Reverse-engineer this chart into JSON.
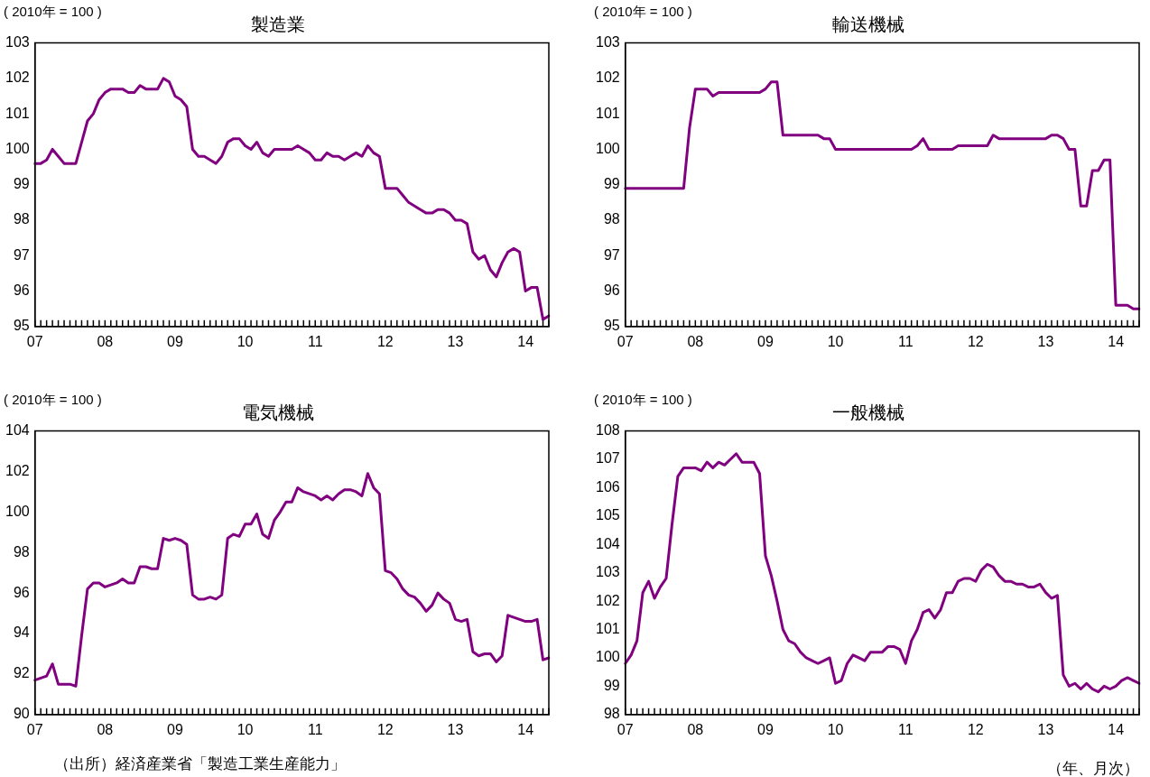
{
  "chart_data": [
    {
      "type": "line",
      "title": "製造業",
      "ylabel": "( 2010年 = 100 )",
      "categories": [
        "07",
        null,
        null,
        null,
        null,
        null,
        null,
        null,
        null,
        null,
        null,
        null,
        "08",
        null,
        null,
        null,
        null,
        null,
        null,
        null,
        null,
        null,
        null,
        null,
        "09",
        null,
        null,
        null,
        null,
        null,
        null,
        null,
        null,
        null,
        null,
        null,
        "10",
        null,
        null,
        null,
        null,
        null,
        null,
        null,
        null,
        null,
        null,
        null,
        "11",
        null,
        null,
        null,
        null,
        null,
        null,
        null,
        null,
        null,
        null,
        null,
        "12",
        null,
        null,
        null,
        null,
        null,
        null,
        null,
        null,
        null,
        null,
        null,
        "13",
        null,
        null,
        null,
        null,
        null,
        null,
        null,
        null,
        null,
        null,
        null,
        "14",
        null,
        null,
        null,
        null
      ],
      "series": [
        {
          "color": "#800080",
          "values": [
            99.6,
            99.6,
            99.7,
            100.0,
            99.8,
            99.6,
            99.6,
            99.6,
            100.2,
            100.8,
            101.0,
            101.4,
            101.6,
            101.7,
            101.7,
            101.7,
            101.6,
            101.6,
            101.8,
            101.7,
            101.7,
            101.7,
            102.0,
            101.9,
            101.5,
            101.4,
            101.2,
            100.0,
            99.8,
            99.8,
            99.7,
            99.6,
            99.8,
            100.2,
            100.3,
            100.3,
            100.1,
            100.0,
            100.2,
            99.9,
            99.8,
            100.0,
            100.0,
            100.0,
            100.0,
            100.1,
            100.0,
            99.9,
            99.7,
            99.7,
            99.9,
            99.8,
            99.8,
            99.7,
            99.8,
            99.9,
            99.8,
            100.1,
            99.9,
            99.8,
            98.9,
            98.9,
            98.9,
            98.7,
            98.5,
            98.4,
            98.3,
            98.2,
            98.2,
            98.3,
            98.3,
            98.2,
            98.0,
            98.0,
            97.9,
            97.1,
            96.9,
            97.0,
            96.6,
            96.4,
            96.8,
            97.1,
            97.2,
            97.1,
            96.0,
            96.1,
            96.1,
            95.2,
            95.3
          ]
        }
      ],
      "ylim": [
        95,
        103
      ],
      "yticks": [
        95,
        96,
        97,
        98,
        99,
        100,
        101,
        102,
        103
      ],
      "grid": false,
      "legend": false,
      "marker": "none"
    },
    {
      "type": "line",
      "title": "輸送機械",
      "ylabel": "( 2010年 = 100 )",
      "categories": [
        "07",
        null,
        null,
        null,
        null,
        null,
        null,
        null,
        null,
        null,
        null,
        null,
        "08",
        null,
        null,
        null,
        null,
        null,
        null,
        null,
        null,
        null,
        null,
        null,
        "09",
        null,
        null,
        null,
        null,
        null,
        null,
        null,
        null,
        null,
        null,
        null,
        "10",
        null,
        null,
        null,
        null,
        null,
        null,
        null,
        null,
        null,
        null,
        null,
        "11",
        null,
        null,
        null,
        null,
        null,
        null,
        null,
        null,
        null,
        null,
        null,
        "12",
        null,
        null,
        null,
        null,
        null,
        null,
        null,
        null,
        null,
        null,
        null,
        "13",
        null,
        null,
        null,
        null,
        null,
        null,
        null,
        null,
        null,
        null,
        null,
        "14",
        null,
        null,
        null,
        null
      ],
      "series": [
        {
          "color": "#800080",
          "values": [
            98.9,
            98.9,
            98.9,
            98.9,
            98.9,
            98.9,
            98.9,
            98.9,
            98.9,
            98.9,
            98.9,
            100.6,
            101.7,
            101.7,
            101.7,
            101.5,
            101.6,
            101.6,
            101.6,
            101.6,
            101.6,
            101.6,
            101.6,
            101.6,
            101.7,
            101.9,
            101.9,
            100.4,
            100.4,
            100.4,
            100.4,
            100.4,
            100.4,
            100.4,
            100.3,
            100.3,
            100.0,
            100.0,
            100.0,
            100.0,
            100.0,
            100.0,
            100.0,
            100.0,
            100.0,
            100.0,
            100.0,
            100.0,
            100.0,
            100.0,
            100.1,
            100.3,
            100.0,
            100.0,
            100.0,
            100.0,
            100.0,
            100.1,
            100.1,
            100.1,
            100.1,
            100.1,
            100.1,
            100.4,
            100.3,
            100.3,
            100.3,
            100.3,
            100.3,
            100.3,
            100.3,
            100.3,
            100.3,
            100.4,
            100.4,
            100.3,
            100.0,
            100.0,
            98.4,
            98.4,
            99.4,
            99.4,
            99.7,
            99.7,
            95.6,
            95.6,
            95.6,
            95.5,
            95.5
          ]
        }
      ],
      "ylim": [
        95,
        103
      ],
      "yticks": [
        95,
        96,
        97,
        98,
        99,
        100,
        101,
        102,
        103
      ],
      "grid": false,
      "legend": false,
      "marker": "none"
    },
    {
      "type": "line",
      "title": "電気機械",
      "ylabel": "( 2010年 = 100 )",
      "annotations": [
        "（出所）経済産業省「製造工業生産能力」"
      ],
      "categories": [
        "07",
        null,
        null,
        null,
        null,
        null,
        null,
        null,
        null,
        null,
        null,
        null,
        "08",
        null,
        null,
        null,
        null,
        null,
        null,
        null,
        null,
        null,
        null,
        null,
        "09",
        null,
        null,
        null,
        null,
        null,
        null,
        null,
        null,
        null,
        null,
        null,
        "10",
        null,
        null,
        null,
        null,
        null,
        null,
        null,
        null,
        null,
        null,
        null,
        "11",
        null,
        null,
        null,
        null,
        null,
        null,
        null,
        null,
        null,
        null,
        null,
        "12",
        null,
        null,
        null,
        null,
        null,
        null,
        null,
        null,
        null,
        null,
        null,
        "13",
        null,
        null,
        null,
        null,
        null,
        null,
        null,
        null,
        null,
        null,
        null,
        "14",
        null,
        null,
        null,
        null
      ],
      "series": [
        {
          "color": "#800080",
          "values": [
            91.7,
            91.8,
            91.9,
            92.5,
            91.5,
            91.5,
            91.5,
            91.4,
            93.9,
            96.2,
            96.5,
            96.5,
            96.3,
            96.4,
            96.5,
            96.7,
            96.5,
            96.5,
            97.3,
            97.3,
            97.2,
            97.2,
            98.7,
            98.6,
            98.7,
            98.6,
            98.4,
            95.9,
            95.7,
            95.7,
            95.8,
            95.7,
            95.9,
            98.7,
            98.9,
            98.8,
            99.4,
            99.4,
            99.9,
            98.9,
            98.7,
            99.6,
            100.0,
            100.5,
            100.5,
            101.2,
            101.0,
            100.9,
            100.8,
            100.6,
            100.8,
            100.6,
            100.9,
            101.1,
            101.1,
            101.0,
            100.8,
            101.9,
            101.2,
            100.9,
            97.1,
            97.0,
            96.7,
            96.2,
            95.9,
            95.8,
            95.5,
            95.1,
            95.4,
            96.0,
            95.7,
            95.5,
            94.7,
            94.6,
            94.7,
            93.1,
            92.9,
            93.0,
            93.0,
            92.6,
            92.9,
            94.9,
            94.8,
            94.7,
            94.6,
            94.6,
            94.7,
            92.7,
            92.8
          ]
        }
      ],
      "ylim": [
        90,
        104
      ],
      "yticks": [
        90,
        92,
        94,
        96,
        98,
        100,
        102,
        104
      ],
      "grid": false,
      "legend": false,
      "marker": "none"
    },
    {
      "type": "line",
      "title": "一般機械",
      "ylabel": "( 2010年 = 100 )",
      "xlabel": "（年、月次）",
      "categories": [
        "07",
        null,
        null,
        null,
        null,
        null,
        null,
        null,
        null,
        null,
        null,
        null,
        "08",
        null,
        null,
        null,
        null,
        null,
        null,
        null,
        null,
        null,
        null,
        null,
        "09",
        null,
        null,
        null,
        null,
        null,
        null,
        null,
        null,
        null,
        null,
        null,
        "10",
        null,
        null,
        null,
        null,
        null,
        null,
        null,
        null,
        null,
        null,
        null,
        "11",
        null,
        null,
        null,
        null,
        null,
        null,
        null,
        null,
        null,
        null,
        null,
        "12",
        null,
        null,
        null,
        null,
        null,
        null,
        null,
        null,
        null,
        null,
        null,
        "13",
        null,
        null,
        null,
        null,
        null,
        null,
        null,
        null,
        null,
        null,
        null,
        "14",
        null,
        null,
        null,
        null
      ],
      "series": [
        {
          "color": "#800080",
          "values": [
            99.8,
            100.1,
            100.6,
            102.3,
            102.7,
            102.1,
            102.5,
            102.8,
            104.7,
            106.4,
            106.7,
            106.7,
            106.7,
            106.6,
            106.9,
            106.7,
            106.9,
            106.8,
            107.0,
            107.2,
            106.9,
            106.9,
            106.9,
            106.5,
            103.6,
            102.9,
            102.0,
            101.0,
            100.6,
            100.5,
            100.2,
            100.0,
            99.9,
            99.8,
            99.9,
            100.0,
            99.1,
            99.2,
            99.8,
            100.1,
            100.0,
            99.9,
            100.2,
            100.2,
            100.2,
            100.4,
            100.4,
            100.3,
            99.8,
            100.6,
            101.0,
            101.6,
            101.7,
            101.4,
            101.7,
            102.3,
            102.3,
            102.7,
            102.8,
            102.8,
            102.7,
            103.1,
            103.3,
            103.2,
            102.9,
            102.7,
            102.7,
            102.6,
            102.6,
            102.5,
            102.5,
            102.6,
            102.3,
            102.1,
            102.2,
            99.4,
            99.0,
            99.1,
            98.9,
            99.1,
            98.9,
            98.8,
            99.0,
            98.9,
            99.0,
            99.2,
            99.3,
            99.2,
            99.1
          ]
        }
      ],
      "ylim": [
        98,
        108
      ],
      "yticks": [
        98,
        99,
        100,
        101,
        102,
        103,
        104,
        105,
        106,
        107,
        108
      ],
      "grid": false,
      "legend": false,
      "marker": "none"
    }
  ]
}
